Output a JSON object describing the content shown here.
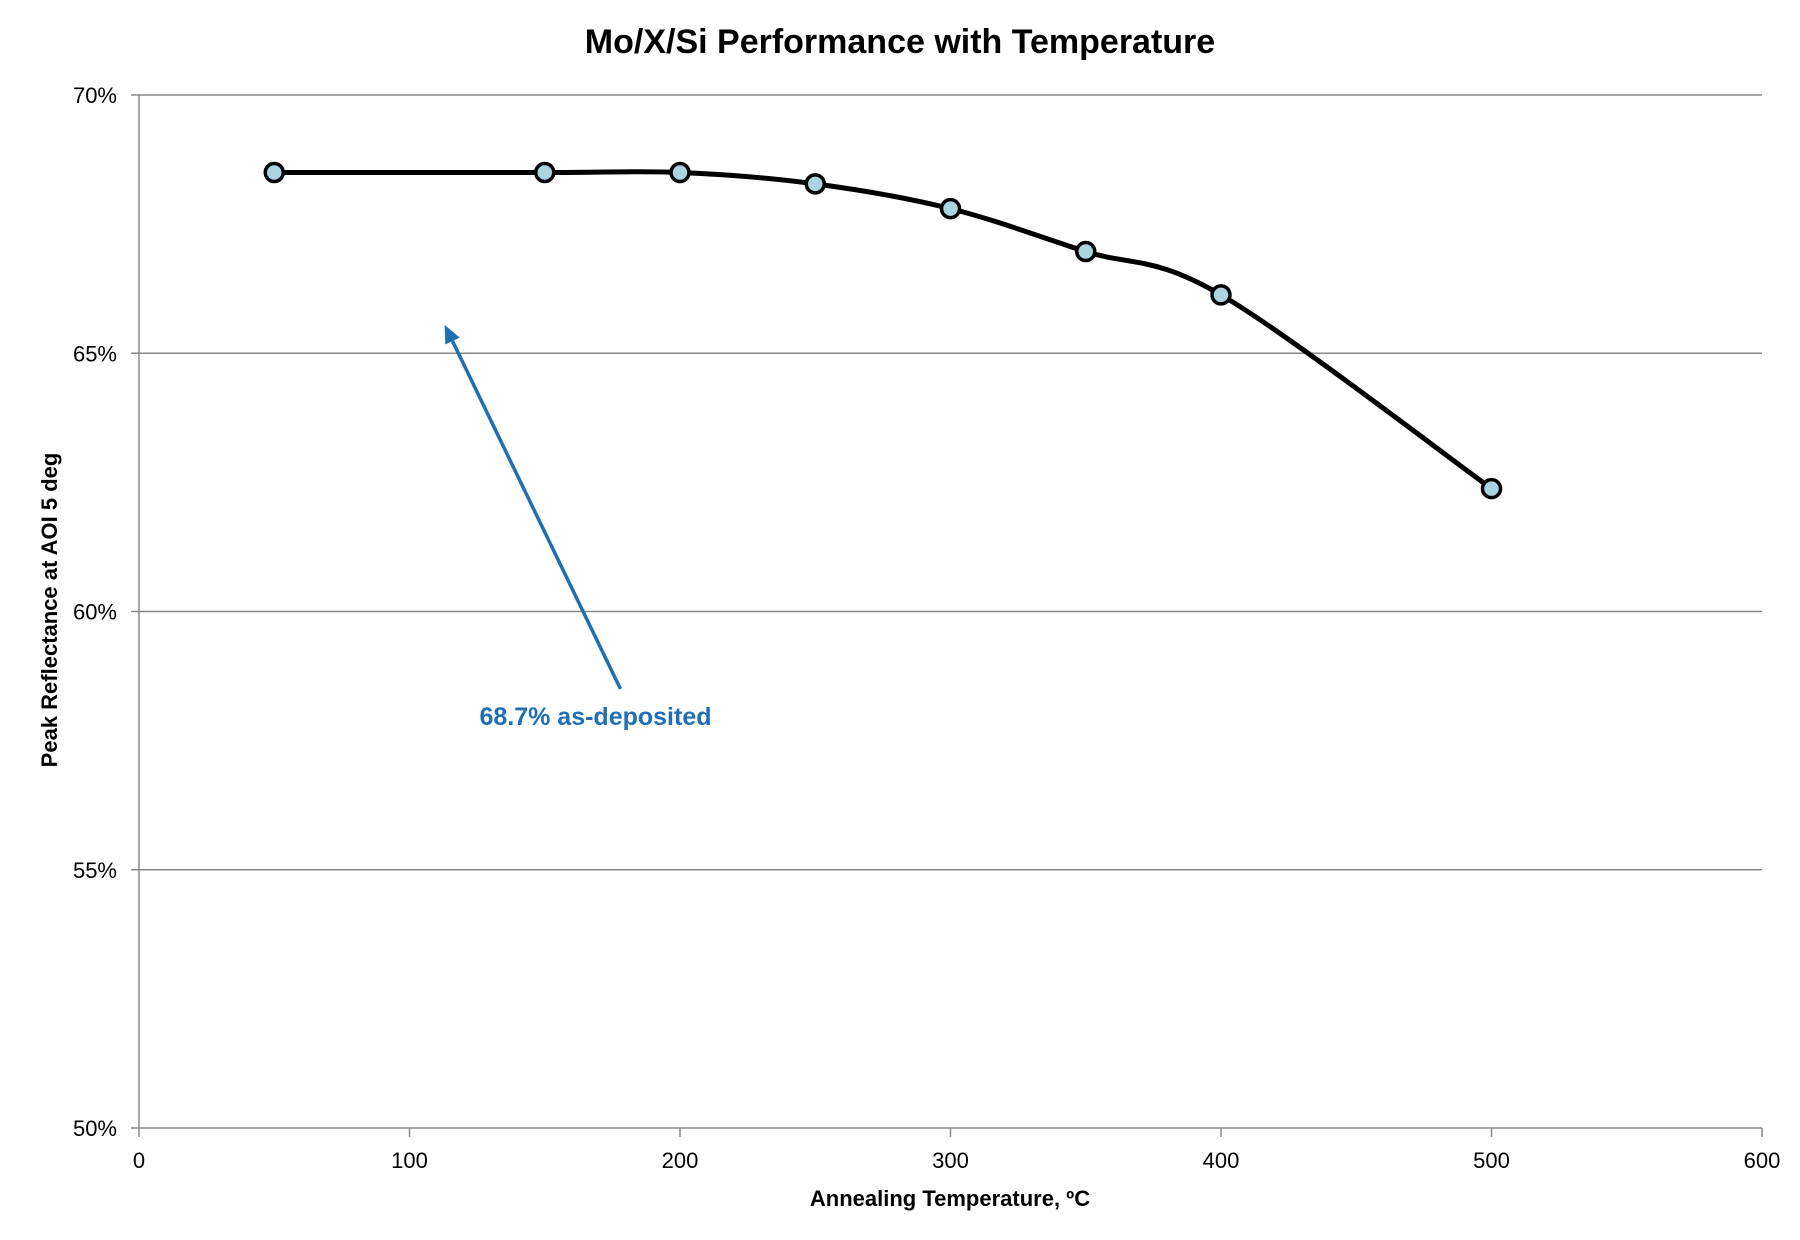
{
  "colors": {
    "line": "#000000",
    "marker_fill": "#a9d4e0",
    "marker_stroke": "#000000",
    "gridline": "#888888",
    "axis": "#888888",
    "annotation": "#1f6fb2"
  },
  "chart_data": {
    "type": "line",
    "title": "Mo/X/Si Performance with Temperature",
    "xlabel": "Annealing Temperature, ºC",
    "ylabel": "Peak Reflectance at AOI 5 deg",
    "xlim": [
      0,
      600
    ],
    "ylim": [
      50,
      70
    ],
    "x_ticks": [
      0,
      100,
      200,
      300,
      400,
      500,
      600
    ],
    "x_tick_labels": [
      "0",
      "100",
      "200",
      "300",
      "400",
      "500",
      "600"
    ],
    "y_ticks": [
      50,
      55,
      60,
      65,
      70
    ],
    "y_tick_labels": [
      "50%",
      "55%",
      "60%",
      "65%",
      "70%"
    ],
    "grid": "horizontal",
    "legend": "none",
    "smooth": true,
    "series": [
      {
        "x": [
          50,
          150,
          200,
          250,
          300,
          350,
          400,
          500
        ],
        "y": [
          68.5,
          68.5,
          68.5,
          68.28,
          67.8,
          66.97,
          66.13,
          62.38
        ]
      }
    ],
    "annotations": [
      {
        "text": "68.7% as-deposited",
        "arrow_from": [
          178,
          58.5
        ],
        "arrow_to": [
          113,
          65.55
        ]
      }
    ]
  }
}
